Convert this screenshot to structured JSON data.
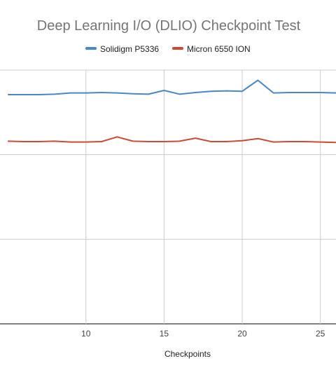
{
  "chart_data": {
    "type": "line",
    "title": "Deep Learning I/O (DLIO) Checkpoint Test",
    "xlabel": "Checkpoints",
    "ylabel": "",
    "xlim": [
      4.5,
      26
    ],
    "ylim": [
      0,
      3
    ],
    "x_ticks": [
      10,
      15,
      20,
      25
    ],
    "grid": true,
    "legend": "top-center",
    "x": [
      5,
      6,
      7,
      8,
      9,
      10,
      11,
      12,
      13,
      14,
      15,
      16,
      17,
      18,
      19,
      20,
      21,
      22,
      23,
      24,
      25,
      26
    ],
    "series": [
      {
        "name": "Solidigm P5336",
        "color": "#4a86c8",
        "values": [
          2.71,
          2.71,
          2.71,
          2.715,
          2.73,
          2.73,
          2.735,
          2.73,
          2.72,
          2.715,
          2.76,
          2.715,
          2.735,
          2.75,
          2.755,
          2.75,
          2.88,
          2.73,
          2.735,
          2.735,
          2.735,
          2.73
        ]
      },
      {
        "name": "Micron 6550 ION",
        "color": "#cc4b37",
        "values": [
          2.16,
          2.155,
          2.155,
          2.16,
          2.15,
          2.15,
          2.155,
          2.21,
          2.16,
          2.155,
          2.155,
          2.16,
          2.195,
          2.155,
          2.155,
          2.165,
          2.19,
          2.15,
          2.155,
          2.155,
          2.15,
          2.145
        ]
      }
    ]
  }
}
